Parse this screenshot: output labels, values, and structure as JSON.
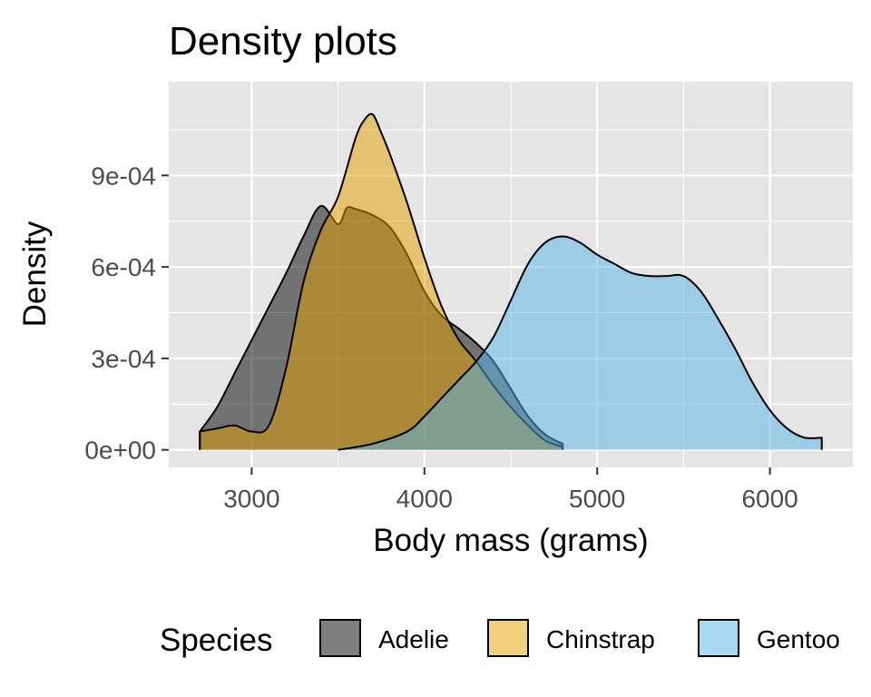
{
  "chart_data": {
    "type": "area",
    "title": "Density plots",
    "xlabel": "Body mass (grams)",
    "ylabel": "Density",
    "xlim": [
      2520,
      6480
    ],
    "ylim": [
      -5.75e-05,
      0.0012075
    ],
    "x_ticks": [
      3000,
      4000,
      5000,
      6000
    ],
    "x_tick_labels": [
      "3000",
      "4000",
      "5000",
      "6000"
    ],
    "y_ticks": [
      0,
      0.0003,
      0.0006,
      0.0009
    ],
    "y_tick_labels": [
      "0e+00",
      "3e-04",
      "6e-04",
      "9e-04"
    ],
    "grid": true,
    "panel_background": "#e5e5e5",
    "legend": {
      "title": "Species",
      "position": "bottom",
      "entries": [
        "Adelie",
        "Chinstrap",
        "Gentoo"
      ]
    },
    "series": [
      {
        "name": "Adelie",
        "color": "#000000",
        "opacity": 0.5,
        "x": [
          2700,
          2800,
          2900,
          3000,
          3100,
          3200,
          3300,
          3400,
          3500,
          3550,
          3600,
          3700,
          3800,
          3900,
          4000,
          4100,
          4200,
          4300,
          4400,
          4500,
          4600,
          4700,
          4800
        ],
        "y": [
          6e-05,
          0.00014,
          0.00025,
          0.00036,
          0.00047,
          0.00058,
          0.0007,
          0.0008,
          0.00074,
          0.000793,
          0.00079,
          0.00077,
          0.00073,
          0.00064,
          0.00052,
          0.00044,
          0.000397,
          0.00035,
          0.00029,
          0.0002,
          0.00011,
          5e-05,
          2e-05
        ]
      },
      {
        "name": "Chinstrap",
        "color": "#e69f00",
        "opacity": 0.5,
        "x": [
          2700,
          2800,
          2900,
          3000,
          3100,
          3200,
          3300,
          3400,
          3500,
          3600,
          3650,
          3700,
          3750,
          3800,
          3900,
          4000,
          4100,
          4200,
          4300,
          4400,
          4500,
          4600,
          4700,
          4800
        ],
        "y": [
          6e-05,
          7e-05,
          8e-05,
          6e-05,
          8e-05,
          0.00027,
          0.00055,
          0.00072,
          0.00083,
          0.00102,
          0.00108,
          0.0011,
          0.00104,
          0.00097,
          0.00081,
          0.00063,
          0.00047,
          0.00036,
          0.00029,
          0.00021,
          0.00014,
          8e-05,
          3e-05,
          1e-05
        ]
      },
      {
        "name": "Gentoo",
        "color": "#56b4e9",
        "opacity": 0.5,
        "x": [
          3500,
          3700,
          3900,
          4000,
          4100,
          4200,
          4300,
          4400,
          4500,
          4600,
          4700,
          4800,
          4900,
          5000,
          5100,
          5200,
          5300,
          5400,
          5500,
          5600,
          5700,
          5800,
          5900,
          6000,
          6100,
          6200,
          6300
        ],
        "y": [
          0.0,
          2e-05,
          6e-05,
          0.00011,
          0.00017,
          0.00023,
          0.00029,
          0.00037,
          0.00049,
          0.00061,
          0.00068,
          0.0007,
          0.00068,
          0.00064,
          0.00061,
          0.00058,
          0.00057,
          0.00057,
          0.00057,
          0.00052,
          0.00043,
          0.00033,
          0.00022,
          0.00013,
          7e-05,
          4e-05,
          4e-05
        ]
      }
    ]
  }
}
